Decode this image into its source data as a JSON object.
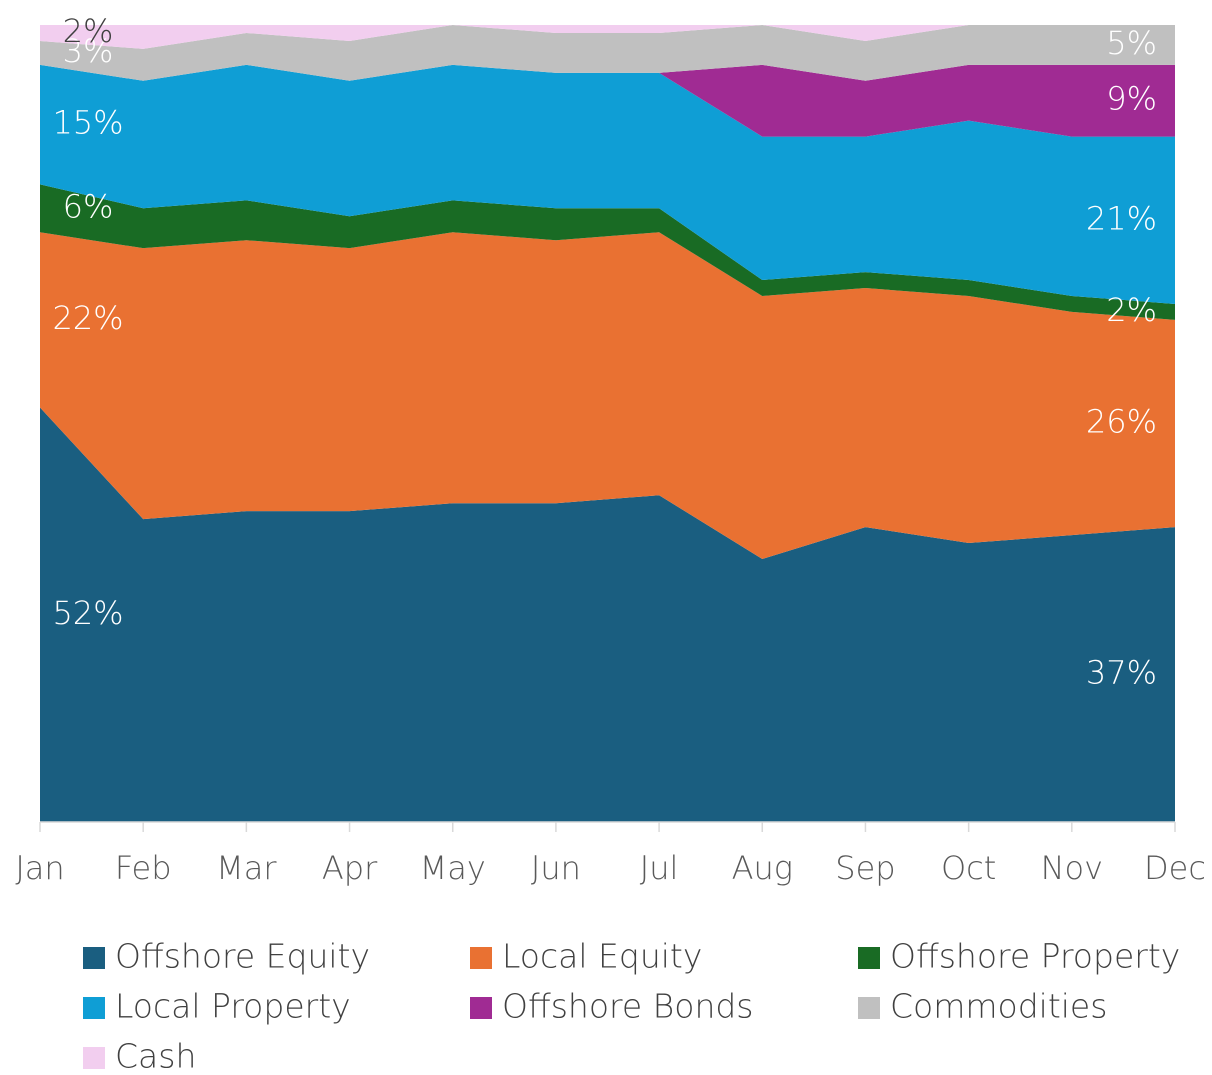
{
  "chart_data": {
    "type": "stacked_area",
    "categories": [
      "Jan",
      "Feb",
      "Mar",
      "Apr",
      "May",
      "Jun",
      "Jul",
      "Aug",
      "Sep",
      "Oct",
      "Nov",
      "Dec"
    ],
    "ylim": [
      0,
      100
    ],
    "series": [
      {
        "name": "Offshore Equity",
        "color": "#1a5e80",
        "values": [
          52,
          38,
          39,
          39,
          40,
          40,
          41,
          33,
          37,
          35,
          36,
          37
        ],
        "value_labels": [
          "52%",
          null,
          null,
          null,
          null,
          null,
          null,
          null,
          null,
          null,
          null,
          "37%"
        ]
      },
      {
        "name": "Local Equity",
        "color": "#e97132",
        "values": [
          22,
          34,
          34,
          33,
          34,
          33,
          33,
          33,
          30,
          31,
          28,
          26
        ],
        "value_labels": [
          "22%",
          null,
          null,
          null,
          null,
          null,
          null,
          null,
          null,
          null,
          null,
          "26%"
        ]
      },
      {
        "name": "Offshore Property",
        "color": "#196b24",
        "values": [
          6,
          5,
          5,
          4,
          4,
          4,
          3,
          2,
          2,
          2,
          2,
          2
        ],
        "value_labels": [
          "6%",
          null,
          null,
          null,
          null,
          null,
          null,
          null,
          null,
          null,
          null,
          "2%"
        ]
      },
      {
        "name": "Local Property",
        "color": "#0f9ed5",
        "values": [
          15,
          16,
          17,
          17,
          17,
          17,
          17,
          18,
          17,
          20,
          20,
          21
        ],
        "value_labels": [
          "15%",
          null,
          null,
          null,
          null,
          null,
          null,
          null,
          null,
          null,
          null,
          "21%"
        ]
      },
      {
        "name": "Offshore Bonds",
        "color": "#a02b93",
        "values": [
          0,
          0,
          0,
          0,
          0,
          0,
          0,
          9,
          7,
          7,
          9,
          9
        ],
        "value_labels": [
          null,
          null,
          null,
          null,
          null,
          null,
          null,
          null,
          null,
          null,
          null,
          "9%"
        ]
      },
      {
        "name": "Commodities",
        "color": "#c0c0c0",
        "values": [
          3,
          4,
          4,
          5,
          5,
          5,
          5,
          5,
          5,
          5,
          5,
          5
        ],
        "value_labels": [
          "3%",
          null,
          null,
          null,
          null,
          null,
          null,
          null,
          null,
          null,
          null,
          "5%"
        ]
      },
      {
        "name": "Cash",
        "color": "#f2ceef",
        "values": [
          2,
          3,
          1,
          2,
          0,
          1,
          1,
          0,
          2,
          0,
          0,
          0
        ],
        "value_labels": [
          "2%",
          null,
          null,
          null,
          null,
          null,
          null,
          null,
          null,
          null,
          null,
          null
        ]
      }
    ]
  }
}
